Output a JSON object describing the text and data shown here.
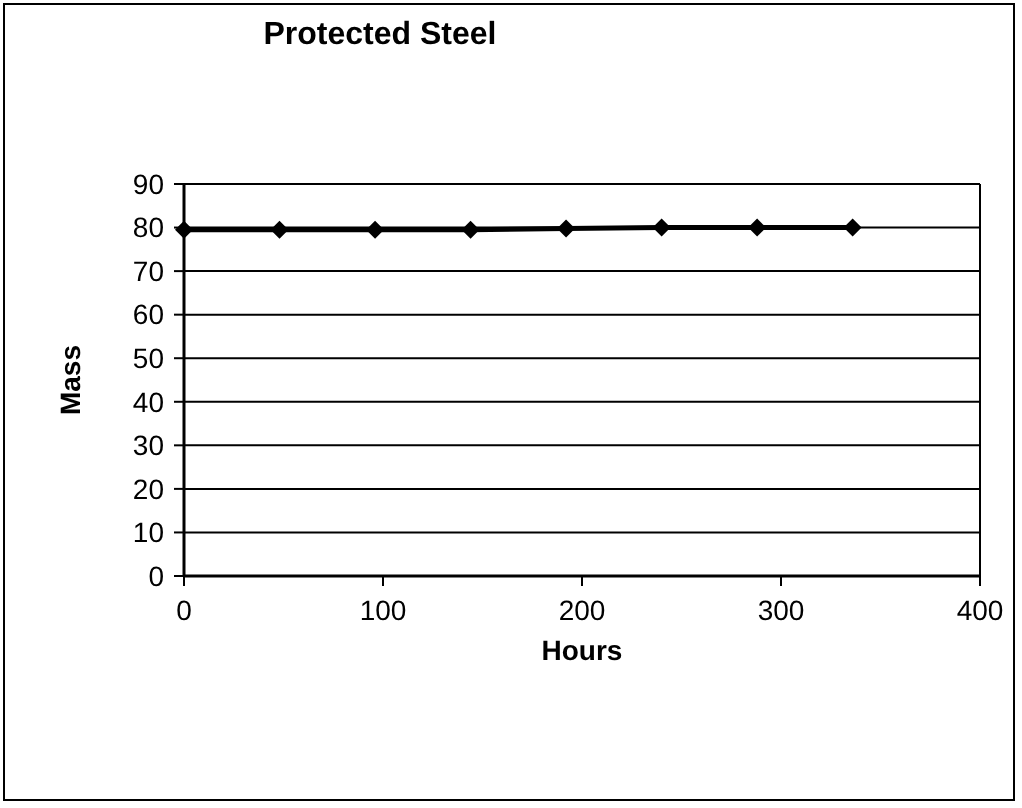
{
  "chart_data": {
    "type": "line",
    "title": "Protected Steel",
    "xlabel": "Hours",
    "ylabel": "Mass",
    "x": [
      0,
      48,
      96,
      144,
      192,
      240,
      288,
      336
    ],
    "series": [
      {
        "color": "#000000",
        "values": [
          79.5,
          79.5,
          79.5,
          79.5,
          79.8,
          80,
          80,
          80
        ]
      }
    ],
    "xlim": [
      0,
      400
    ],
    "xticks": [
      0,
      100,
      200,
      300,
      400
    ],
    "ylim": [
      0,
      90
    ],
    "yticks": [
      0,
      10,
      20,
      30,
      40,
      50,
      60,
      70,
      80,
      90
    ],
    "grid": "y",
    "marker": "diamond",
    "line_style": "solid"
  }
}
